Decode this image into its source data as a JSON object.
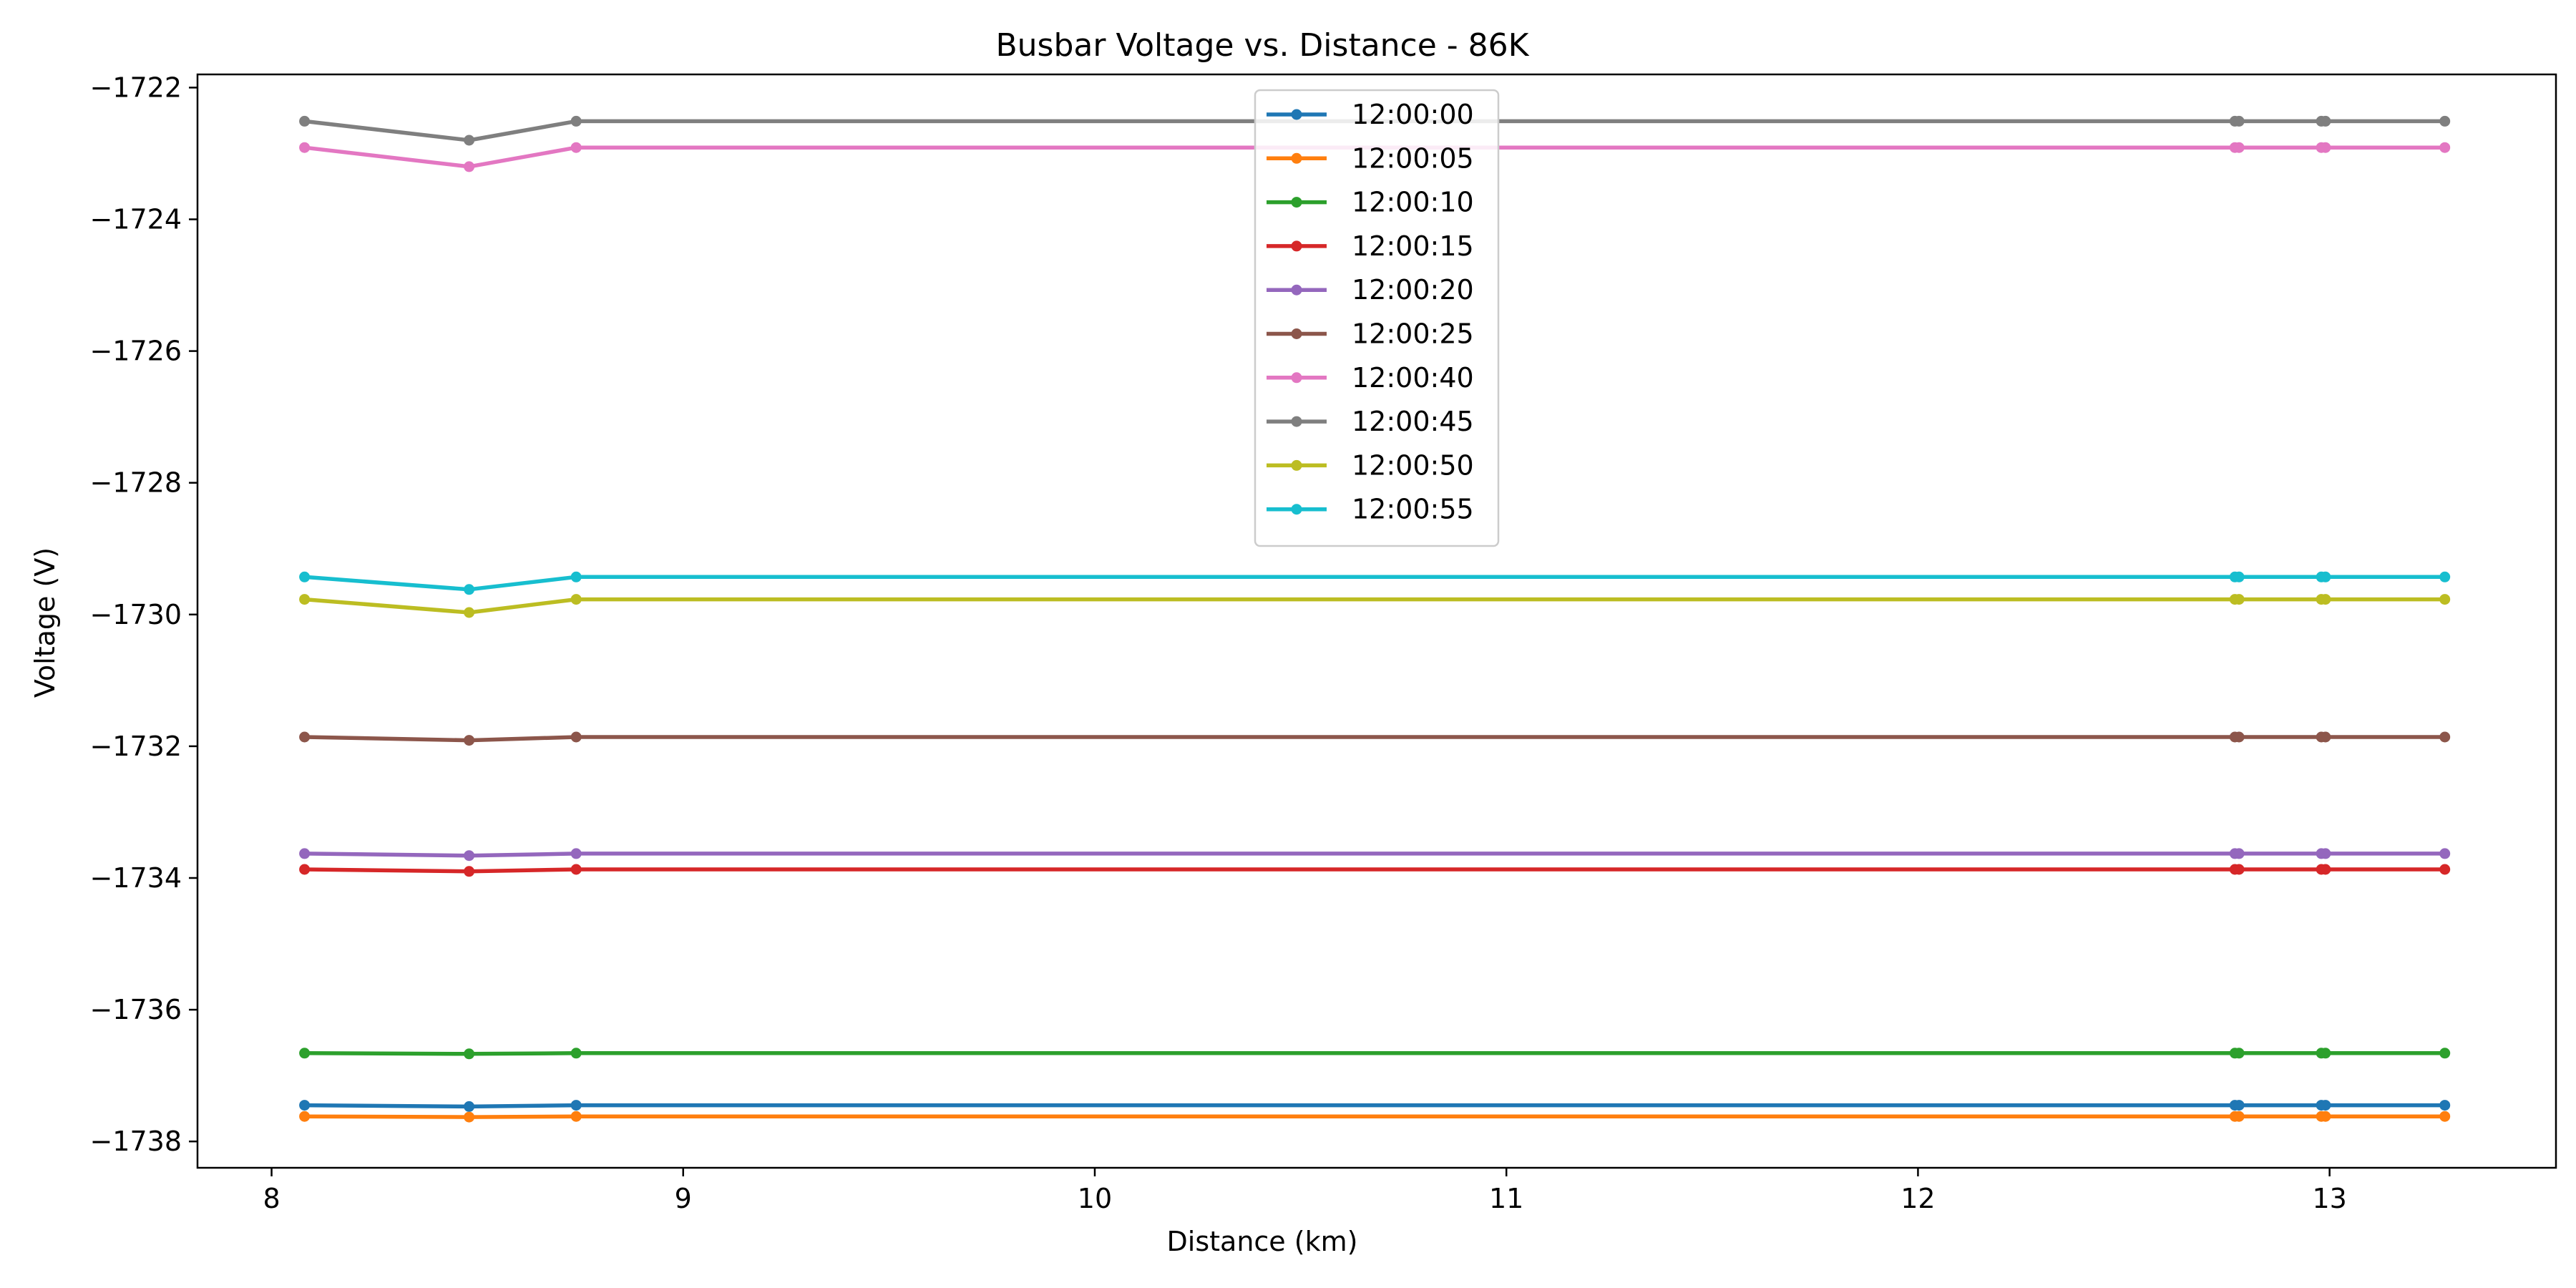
{
  "chart_data": {
    "type": "line",
    "title": "Busbar Voltage vs. Distance - 86K",
    "xlabel": "Distance (km)",
    "ylabel": "Voltage (V)",
    "xlim": [
      7.82,
      13.55
    ],
    "ylim": [
      -1738.4,
      -1721.8
    ],
    "xticks": [
      8,
      9,
      10,
      11,
      12,
      13
    ],
    "xtick_labels": [
      "8",
      "9",
      "10",
      "11",
      "12",
      "13"
    ],
    "yticks": [
      -1722,
      -1724,
      -1726,
      -1728,
      -1730,
      -1732,
      -1734,
      -1736,
      -1738
    ],
    "ytick_labels": [
      "−1722",
      "−1724",
      "−1726",
      "−1728",
      "−1730",
      "−1732",
      "−1734",
      "−1736",
      "−1738"
    ],
    "grid": false,
    "legend_position": "upper-center",
    "markers": true,
    "x": [
      8.08,
      8.48,
      8.74,
      12.77,
      12.78,
      12.98,
      12.99,
      13.28
    ],
    "series": [
      {
        "name": "12:00:00",
        "color": "#1f77b4",
        "values": [
          -1737.45,
          -1737.47,
          -1737.45,
          -1737.45,
          -1737.45,
          -1737.45,
          -1737.45,
          -1737.45
        ]
      },
      {
        "name": "12:00:05",
        "color": "#ff7f0e",
        "values": [
          -1737.62,
          -1737.63,
          -1737.62,
          -1737.62,
          -1737.62,
          -1737.62,
          -1737.62,
          -1737.62
        ]
      },
      {
        "name": "12:00:10",
        "color": "#2ca02c",
        "values": [
          -1736.66,
          -1736.67,
          -1736.66,
          -1736.66,
          -1736.66,
          -1736.66,
          -1736.66,
          -1736.66
        ]
      },
      {
        "name": "12:00:15",
        "color": "#d62728",
        "values": [
          -1733.87,
          -1733.9,
          -1733.87,
          -1733.87,
          -1733.87,
          -1733.87,
          -1733.87,
          -1733.87
        ]
      },
      {
        "name": "12:00:20",
        "color": "#9467bd",
        "values": [
          -1733.63,
          -1733.66,
          -1733.63,
          -1733.63,
          -1733.63,
          -1733.63,
          -1733.63,
          -1733.63
        ]
      },
      {
        "name": "12:00:25",
        "color": "#8c564b",
        "values": [
          -1731.86,
          -1731.91,
          -1731.86,
          -1731.86,
          -1731.86,
          -1731.86,
          -1731.86,
          -1731.86
        ]
      },
      {
        "name": "12:00:40",
        "color": "#e377c2",
        "values": [
          -1722.91,
          -1723.2,
          -1722.91,
          -1722.91,
          -1722.91,
          -1722.91,
          -1722.91,
          -1722.91
        ]
      },
      {
        "name": "12:00:45",
        "color": "#7f7f7f",
        "values": [
          -1722.51,
          -1722.8,
          -1722.51,
          -1722.51,
          -1722.51,
          -1722.51,
          -1722.51,
          -1722.51
        ]
      },
      {
        "name": "12:00:50",
        "color": "#bcbd22",
        "values": [
          -1729.77,
          -1729.97,
          -1729.77,
          -1729.77,
          -1729.77,
          -1729.77,
          -1729.77,
          -1729.77
        ]
      },
      {
        "name": "12:00:55",
        "color": "#17becf",
        "values": [
          -1729.43,
          -1729.62,
          -1729.43,
          -1729.43,
          -1729.43,
          -1729.43,
          -1729.43,
          -1729.43
        ]
      }
    ]
  }
}
